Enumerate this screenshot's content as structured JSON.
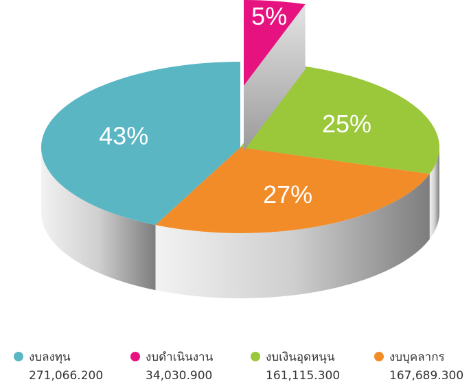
{
  "chart_data": {
    "type": "pie",
    "categories": [
      "งบลงทุน",
      "งบดำเนินงาน",
      "งบเงินอุดหนุน",
      "งบบุคลากร"
    ],
    "values": [
      43,
      5,
      25,
      27
    ],
    "value_labels": [
      "43%",
      "5%",
      "25%",
      "27%"
    ],
    "amounts": [
      "271,066.200",
      "34,030.900",
      "161,115.300",
      "167,689.300"
    ],
    "colors": [
      "#5bb6c4",
      "#e6127f",
      "#9bc73a",
      "#f28c28"
    ],
    "exploded": [
      false,
      true,
      false,
      false
    ]
  }
}
